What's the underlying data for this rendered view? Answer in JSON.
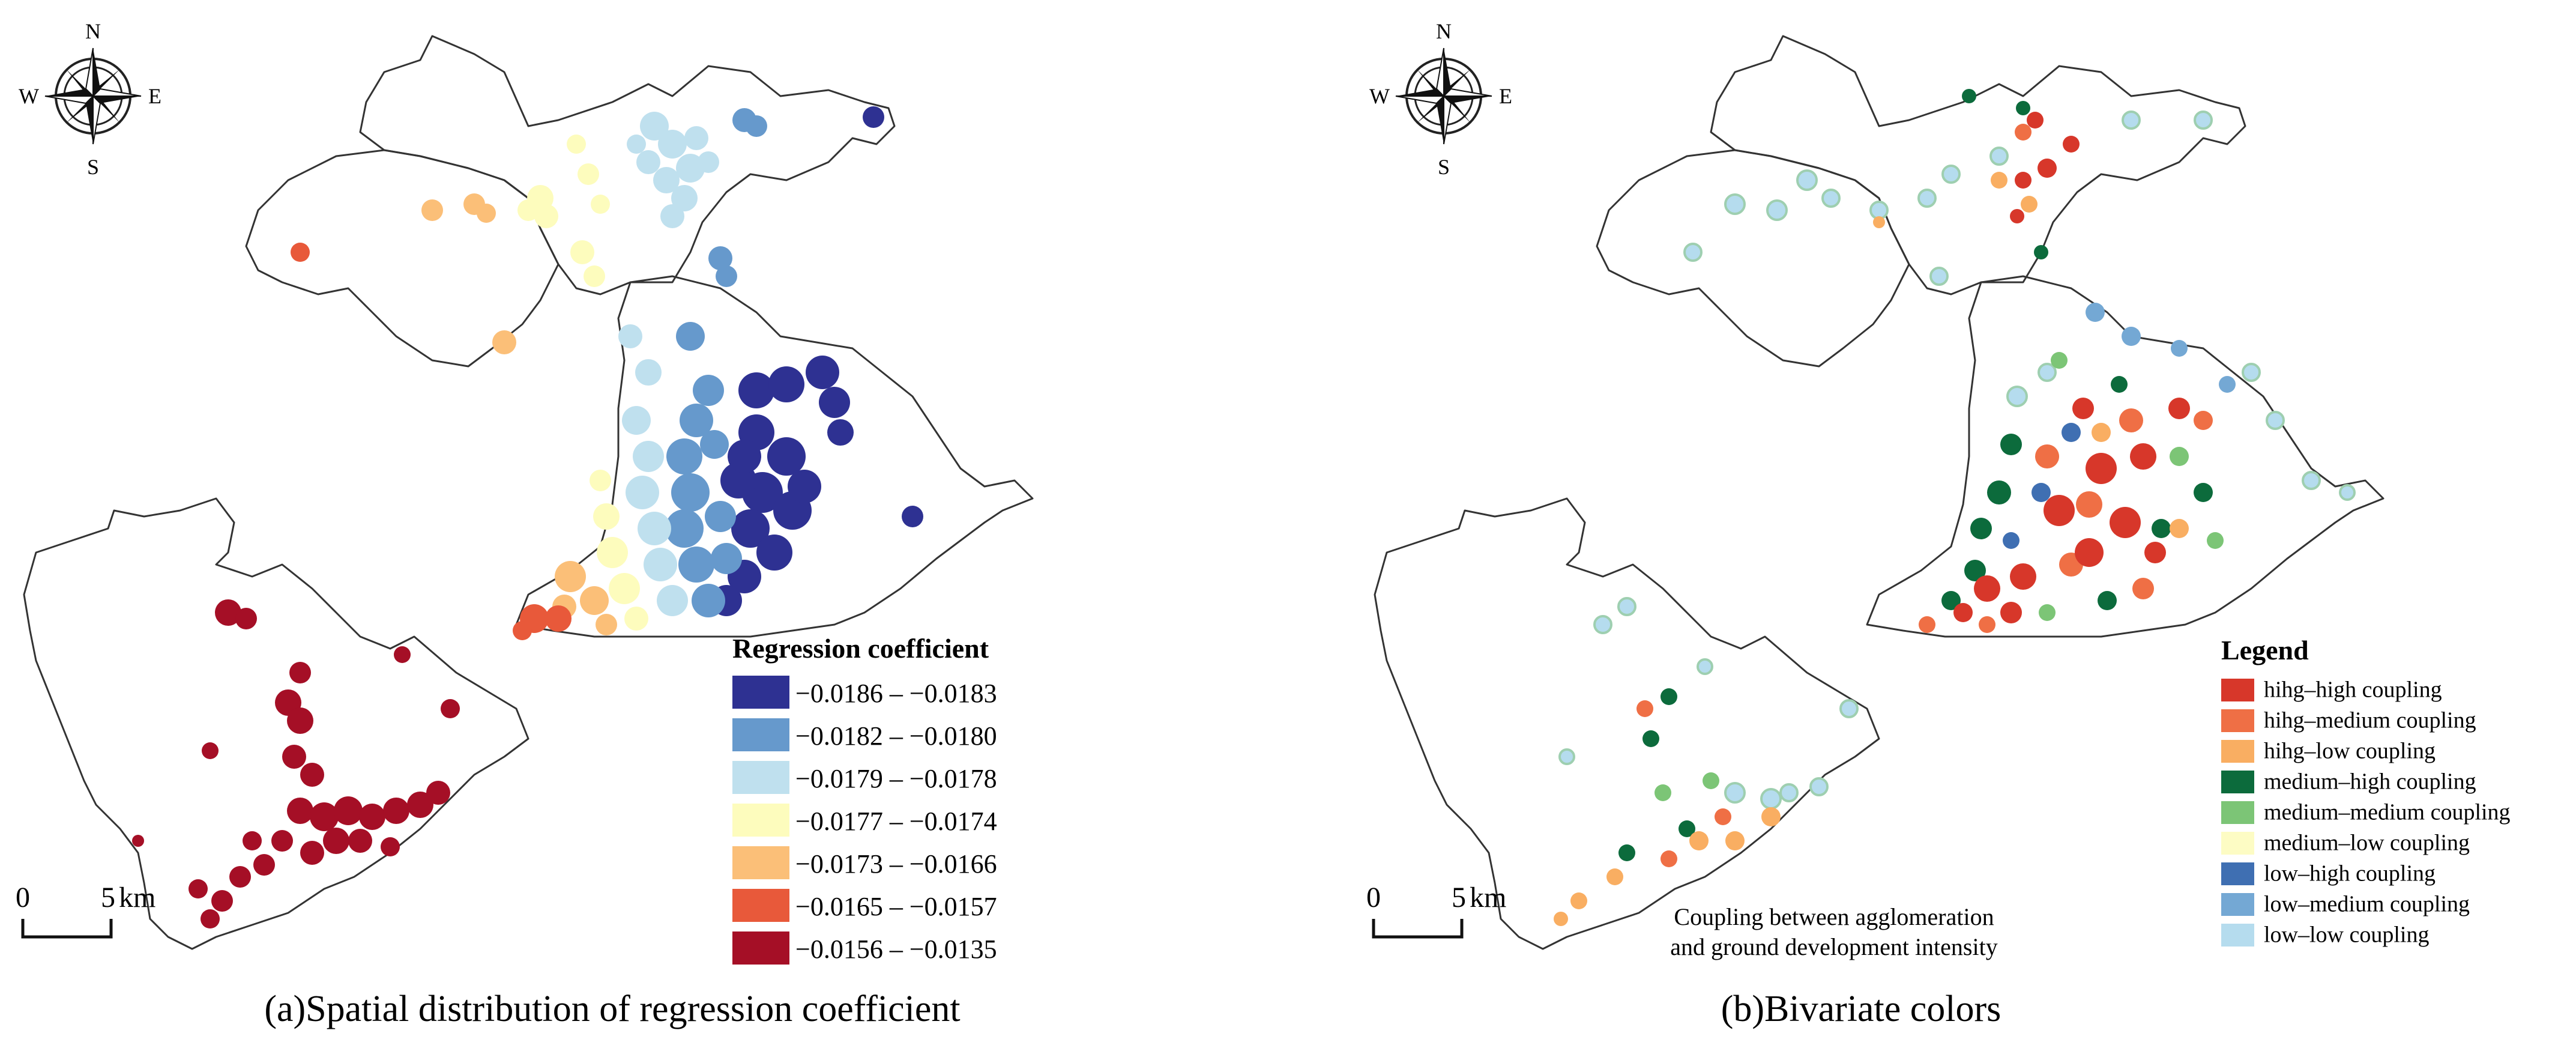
{
  "compass": {
    "north": "N",
    "south": "S",
    "east": "E",
    "west": "W"
  },
  "scale_bar": {
    "zero": "0",
    "distance": "5",
    "unit": "km"
  },
  "panel_a": {
    "caption": "(a)Spatial distribution of regression coefficient",
    "legend_title": "Regression coefficient",
    "legend_items": [
      {
        "label": "−0.0186 – −0.0183",
        "color": "#2e3192"
      },
      {
        "label": "−0.0182 – −0.0180",
        "color": "#6699cc"
      },
      {
        "label": "−0.0179 – −0.0178",
        "color": "#bfe0ee"
      },
      {
        "label": "−0.0177 – −0.0174",
        "color": "#fdfcbd"
      },
      {
        "label": "−0.0173 – −0.0166",
        "color": "#fbbf78"
      },
      {
        "label": "−0.0165 – −0.0157",
        "color": "#e8593a"
      },
      {
        "label": "−0.0156 – −0.0135",
        "color": "#a50f26"
      }
    ]
  },
  "panel_b": {
    "caption": "(b)Bivariate colors",
    "legend_title": "Legend",
    "legend_items": [
      {
        "label": "hihg–high coupling",
        "color": "#d7372a"
      },
      {
        "label": "hihg–medium coupling",
        "color": "#ef6f45"
      },
      {
        "label": "hihg–low coupling",
        "color": "#f9ae62"
      },
      {
        "label": "medium–high coupling",
        "color": "#0c6b3c"
      },
      {
        "label": "medium–medium coupling",
        "color": "#7cc576"
      },
      {
        "label": "medium–low coupling",
        "color": "#fdfcc4"
      },
      {
        "label": "low–high coupling",
        "color": "#3f6fb2"
      },
      {
        "label": "low–medium coupling",
        "color": "#74a8d4"
      },
      {
        "label": "low–low coupling",
        "color": "#b5dcee"
      }
    ],
    "annotation_line1": "Coupling between agglomeration",
    "annotation_line2": "and ground development intensity"
  }
}
